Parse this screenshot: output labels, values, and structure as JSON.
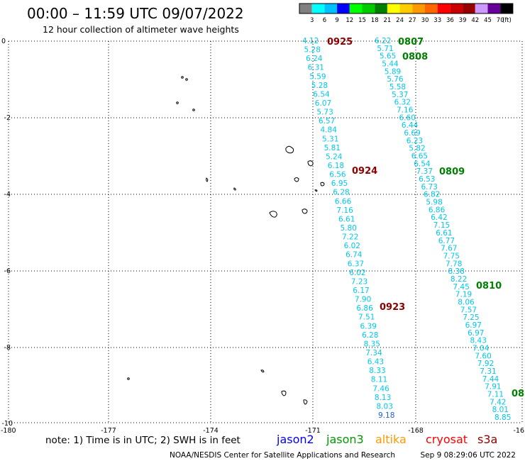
{
  "header": {
    "title": "00:00 – 11:59 UTC 09/07/2022",
    "subtitle": "12 hour collection of altimeter wave heights"
  },
  "color_scale": {
    "ticks": [
      "3",
      "6",
      "9",
      "12",
      "15",
      "18",
      "21",
      "24",
      "27",
      "30",
      "33",
      "36",
      "39",
      "42",
      "45",
      "70"
    ],
    "unit": "(ft)",
    "colors": [
      "#808080",
      "#00ffff",
      "#00c0ff",
      "#0000ff",
      "#00ff00",
      "#00cc00",
      "#008000",
      "#ffff00",
      "#ffcc00",
      "#ff9900",
      "#ff6600",
      "#ff0000",
      "#cc0000",
      "#990000",
      "#cc99ff",
      "#660099",
      "#000000"
    ]
  },
  "axes": {
    "x_labels": [
      "-180",
      "-177",
      "-174",
      "-171",
      "-168",
      "-16"
    ],
    "y_labels": [
      "0",
      "-2",
      "-4",
      "-6",
      "-8",
      "-10"
    ]
  },
  "time_labels": [
    {
      "text": "0925",
      "color": "#8b0000"
    },
    {
      "text": "0807",
      "color": "#008000"
    },
    {
      "text": "0808",
      "color": "#008000"
    },
    {
      "text": "0924",
      "color": "#8b0000"
    },
    {
      "text": "0809",
      "color": "#008000"
    },
    {
      "text": "0810",
      "color": "#008000"
    },
    {
      "text": "0923",
      "color": "#8b0000"
    },
    {
      "text": "08",
      "color": "#008000"
    }
  ],
  "track1": {
    "color": "#00c8e8",
    "values": [
      "4.12",
      "5.28",
      "6.24",
      "6.31",
      "5.59",
      "5.28",
      "6.54",
      "6.07",
      "5.73",
      "6.57",
      "4.84",
      "5.31",
      "5.81",
      "5.24",
      "6.18",
      "6.56",
      "6.95",
      "6.28",
      "6.66",
      "7.16",
      "6.61",
      "5.80",
      "7.22",
      "6.02",
      "6.74",
      "6.37",
      "6.02",
      "7.23",
      "6.17",
      "7.90",
      "6.86",
      "7.51",
      "6.39",
      "6.28",
      "8.35",
      "7.34",
      "6.43",
      "8.33",
      "8.11",
      "7.46",
      "8.13",
      "8.03",
      "9.18"
    ]
  },
  "track2": {
    "color": "#00c8e8",
    "values": [
      "6.22",
      "5.71",
      "5.65",
      "5.44",
      "5.89",
      "5.76",
      "5.58",
      "5.37",
      "6.32",
      "7.16",
      "6.60",
      "6.44",
      "6.69",
      "6.23",
      "5.82",
      "6.65",
      "6.54",
      "7.37",
      "6.53",
      "6.73",
      "6.82",
      "5.98",
      "6.86",
      "6.42",
      "7.15",
      "6.61",
      "6.77",
      "7.67",
      "7.75",
      "7.78",
      "8.38",
      "8.22",
      "7.45",
      "7.19",
      "8.06",
      "7.57",
      "7.25",
      "6.97",
      "6.97",
      "8.43",
      "7.04",
      "7.60",
      "7.92",
      "7.31",
      "7.44",
      "7.91",
      "7.11",
      "7.42",
      "8.01",
      "8.85"
    ]
  },
  "legend": {
    "note": "note: 1) Time is in UTC; 2) SWH is in feet",
    "satellites": [
      {
        "name": "jason2",
        "color": "#0000ff"
      },
      {
        "name": "jason3",
        "color": "#009900"
      },
      {
        "name": "altika",
        "color": "#ff9900"
      },
      {
        "name": "cryosat",
        "color": "#ff0000"
      },
      {
        "name": "s3a",
        "color": "#8b0000"
      }
    ]
  },
  "footer": {
    "credit": "NOAA/NESDIS Center for Satellite Applications and Research",
    "timestamp": "Sep  9 08:29:06 UTC 2022"
  }
}
